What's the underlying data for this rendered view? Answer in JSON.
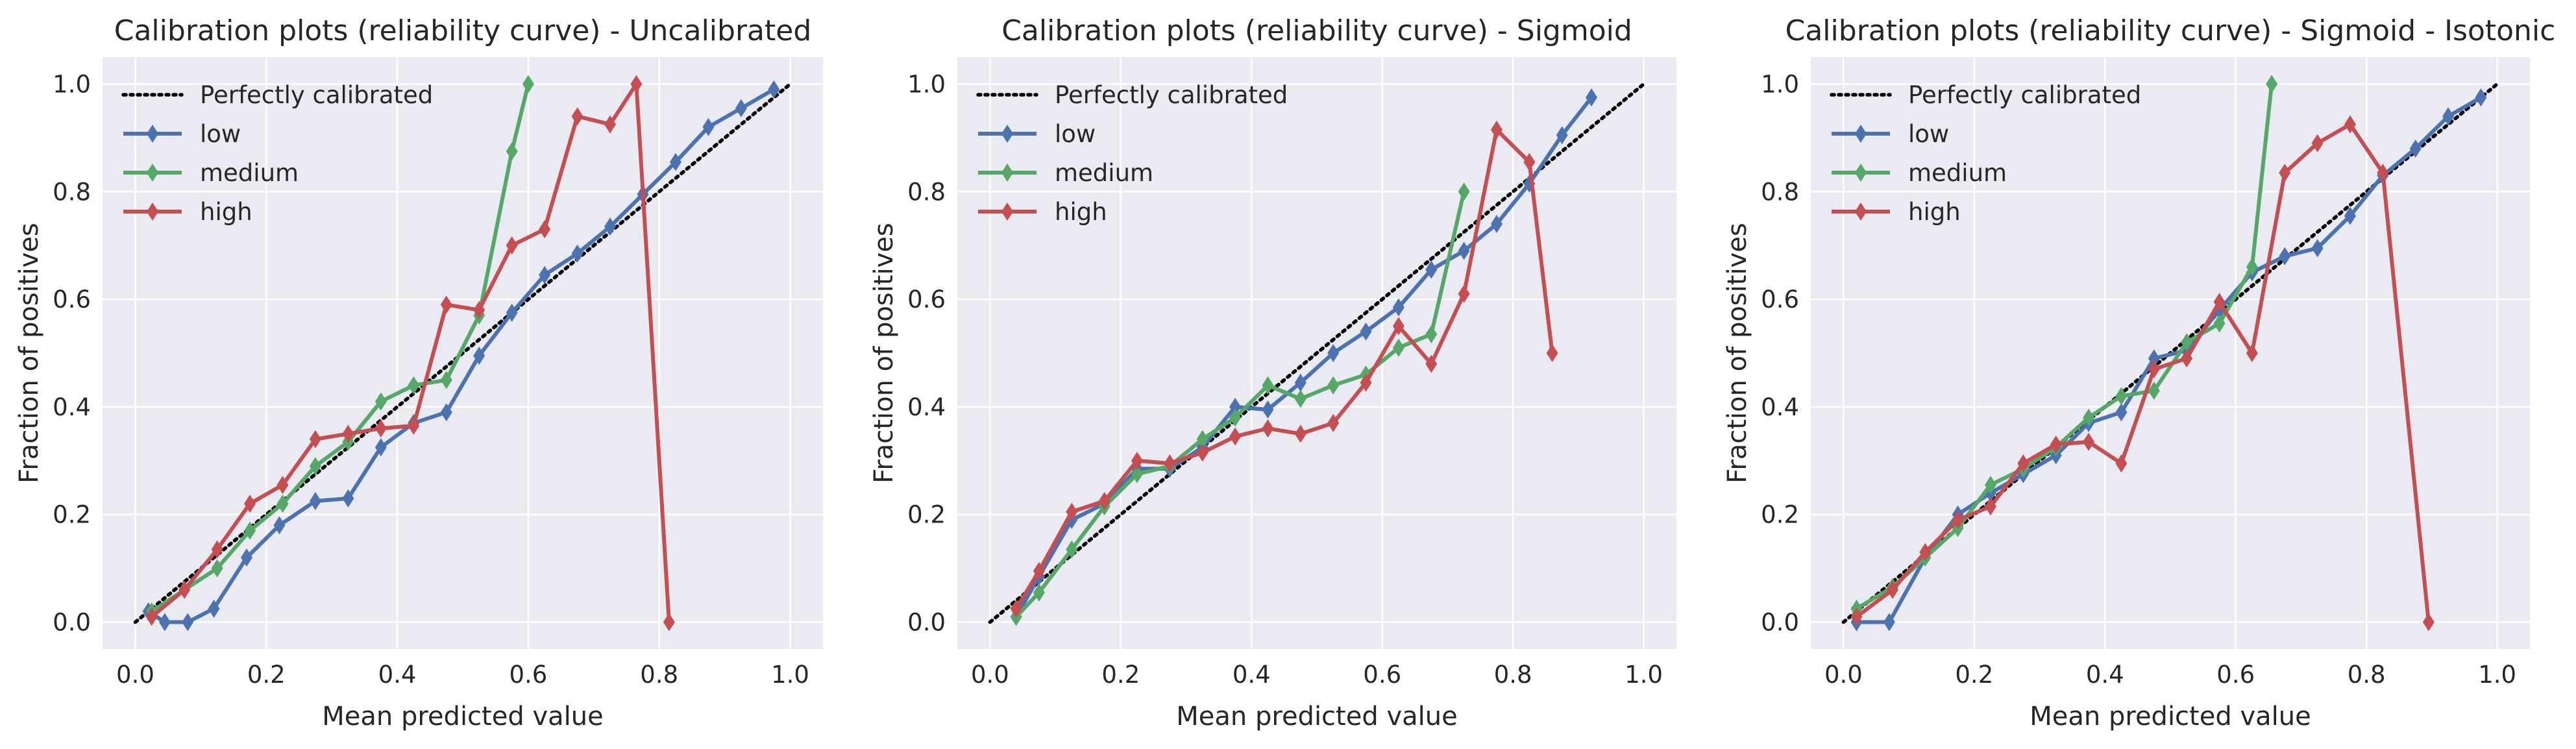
{
  "chart_data": [
    {
      "type": "line",
      "title": "Calibration plots (reliability curve) - Uncalibrated",
      "xlabel": "Mean predicted value",
      "ylabel": "Fraction of positives",
      "xlim": [
        -0.05,
        1.05
      ],
      "ylim": [
        -0.05,
        1.05
      ],
      "xticks": [
        "0.0",
        "0.2",
        "0.4",
        "0.6",
        "0.8",
        "1.0"
      ],
      "yticks": [
        "0.0",
        "0.2",
        "0.4",
        "0.6",
        "0.8",
        "1.0"
      ],
      "grid": true,
      "legend_position": "top-left",
      "reference": {
        "name": "Perfectly calibrated",
        "x": [
          0,
          1
        ],
        "y": [
          0,
          1
        ],
        "color": "#000000",
        "style": "dotted"
      },
      "series": [
        {
          "name": "low",
          "color": "#4c72b0",
          "x": [
            0.02,
            0.045,
            0.08,
            0.12,
            0.17,
            0.22,
            0.275,
            0.325,
            0.375,
            0.425,
            0.475,
            0.525,
            0.575,
            0.625,
            0.675,
            0.725,
            0.775,
            0.825,
            0.875,
            0.925,
            0.975
          ],
          "y": [
            0.02,
            0.0,
            0.0,
            0.025,
            0.12,
            0.18,
            0.225,
            0.23,
            0.325,
            0.37,
            0.39,
            0.495,
            0.575,
            0.645,
            0.685,
            0.735,
            0.795,
            0.855,
            0.92,
            0.955,
            0.99
          ]
        },
        {
          "name": "medium",
          "color": "#55a868",
          "x": [
            0.025,
            0.075,
            0.125,
            0.175,
            0.225,
            0.275,
            0.325,
            0.375,
            0.425,
            0.475,
            0.525,
            0.575,
            0.6
          ],
          "y": [
            0.02,
            0.06,
            0.1,
            0.17,
            0.22,
            0.29,
            0.335,
            0.41,
            0.44,
            0.45,
            0.57,
            0.875,
            1.0
          ]
        },
        {
          "name": "high",
          "color": "#c44e52",
          "x": [
            0.025,
            0.075,
            0.125,
            0.175,
            0.225,
            0.275,
            0.325,
            0.375,
            0.425,
            0.475,
            0.525,
            0.575,
            0.625,
            0.675,
            0.725,
            0.765,
            0.815
          ],
          "y": [
            0.01,
            0.06,
            0.135,
            0.22,
            0.255,
            0.34,
            0.35,
            0.36,
            0.365,
            0.59,
            0.58,
            0.7,
            0.73,
            0.94,
            0.925,
            1.0,
            0.0
          ]
        }
      ]
    },
    {
      "type": "line",
      "title": "Calibration plots (reliability curve) - Sigmoid",
      "xlabel": "Mean predicted value",
      "ylabel": "Fraction of positives",
      "xlim": [
        -0.05,
        1.05
      ],
      "ylim": [
        -0.05,
        1.05
      ],
      "xticks": [
        "0.0",
        "0.2",
        "0.4",
        "0.6",
        "0.8",
        "1.0"
      ],
      "yticks": [
        "0.0",
        "0.2",
        "0.4",
        "0.6",
        "0.8",
        "1.0"
      ],
      "grid": true,
      "legend_position": "top-left",
      "reference": {
        "name": "Perfectly calibrated",
        "x": [
          0,
          1
        ],
        "y": [
          0,
          1
        ],
        "color": "#000000",
        "style": "dotted"
      },
      "series": [
        {
          "name": "low",
          "color": "#4c72b0",
          "x": [
            0.04,
            0.075,
            0.125,
            0.175,
            0.225,
            0.275,
            0.325,
            0.375,
            0.425,
            0.475,
            0.525,
            0.575,
            0.625,
            0.675,
            0.725,
            0.775,
            0.825,
            0.875,
            0.92
          ],
          "y": [
            0.01,
            0.085,
            0.19,
            0.22,
            0.285,
            0.285,
            0.325,
            0.4,
            0.395,
            0.445,
            0.5,
            0.54,
            0.585,
            0.655,
            0.69,
            0.74,
            0.815,
            0.905,
            0.975
          ]
        },
        {
          "name": "medium",
          "color": "#55a868",
          "x": [
            0.04,
            0.075,
            0.125,
            0.175,
            0.225,
            0.275,
            0.325,
            0.375,
            0.425,
            0.475,
            0.525,
            0.575,
            0.625,
            0.675,
            0.725
          ],
          "y": [
            0.01,
            0.055,
            0.135,
            0.215,
            0.275,
            0.29,
            0.34,
            0.38,
            0.44,
            0.415,
            0.44,
            0.46,
            0.51,
            0.535,
            0.8
          ]
        },
        {
          "name": "high",
          "color": "#c44e52",
          "x": [
            0.04,
            0.075,
            0.125,
            0.175,
            0.225,
            0.275,
            0.325,
            0.375,
            0.425,
            0.475,
            0.525,
            0.575,
            0.625,
            0.675,
            0.725,
            0.775,
            0.825,
            0.86
          ],
          "y": [
            0.025,
            0.095,
            0.205,
            0.225,
            0.3,
            0.295,
            0.315,
            0.345,
            0.36,
            0.35,
            0.37,
            0.445,
            0.55,
            0.48,
            0.61,
            0.915,
            0.855,
            0.5
          ]
        }
      ]
    },
    {
      "type": "line",
      "title": "Calibration plots (reliability curve) - Sigmoid - Isotonic",
      "xlabel": "Mean predicted value",
      "ylabel": "Fraction of positives",
      "xlim": [
        -0.05,
        1.05
      ],
      "ylim": [
        -0.05,
        1.05
      ],
      "xticks": [
        "0.0",
        "0.2",
        "0.4",
        "0.6",
        "0.8",
        "1.0"
      ],
      "yticks": [
        "0.0",
        "0.2",
        "0.4",
        "0.6",
        "0.8",
        "1.0"
      ],
      "grid": true,
      "legend_position": "top-left",
      "reference": {
        "name": "Perfectly calibrated",
        "x": [
          0,
          1
        ],
        "y": [
          0,
          1
        ],
        "color": "#000000",
        "style": "dotted"
      },
      "series": [
        {
          "name": "low",
          "color": "#4c72b0",
          "x": [
            0.02,
            0.07,
            0.125,
            0.175,
            0.225,
            0.275,
            0.325,
            0.375,
            0.425,
            0.475,
            0.525,
            0.575,
            0.625,
            0.675,
            0.725,
            0.775,
            0.825,
            0.875,
            0.925,
            0.975
          ],
          "y": [
            0.0,
            0.0,
            0.12,
            0.2,
            0.24,
            0.275,
            0.31,
            0.37,
            0.39,
            0.49,
            0.505,
            0.58,
            0.65,
            0.68,
            0.695,
            0.755,
            0.83,
            0.88,
            0.94,
            0.975
          ]
        },
        {
          "name": "medium",
          "color": "#55a868",
          "x": [
            0.02,
            0.075,
            0.125,
            0.175,
            0.225,
            0.275,
            0.325,
            0.375,
            0.425,
            0.475,
            0.525,
            0.575,
            0.625,
            0.655
          ],
          "y": [
            0.025,
            0.065,
            0.12,
            0.175,
            0.255,
            0.285,
            0.325,
            0.38,
            0.42,
            0.43,
            0.52,
            0.555,
            0.66,
            1.0
          ]
        },
        {
          "name": "high",
          "color": "#c44e52",
          "x": [
            0.02,
            0.075,
            0.125,
            0.175,
            0.225,
            0.275,
            0.325,
            0.375,
            0.425,
            0.475,
            0.525,
            0.575,
            0.625,
            0.675,
            0.725,
            0.775,
            0.825,
            0.895
          ],
          "y": [
            0.01,
            0.06,
            0.13,
            0.19,
            0.215,
            0.295,
            0.33,
            0.335,
            0.295,
            0.47,
            0.49,
            0.595,
            0.5,
            0.835,
            0.89,
            0.925,
            0.835,
            0.0
          ]
        }
      ]
    }
  ]
}
